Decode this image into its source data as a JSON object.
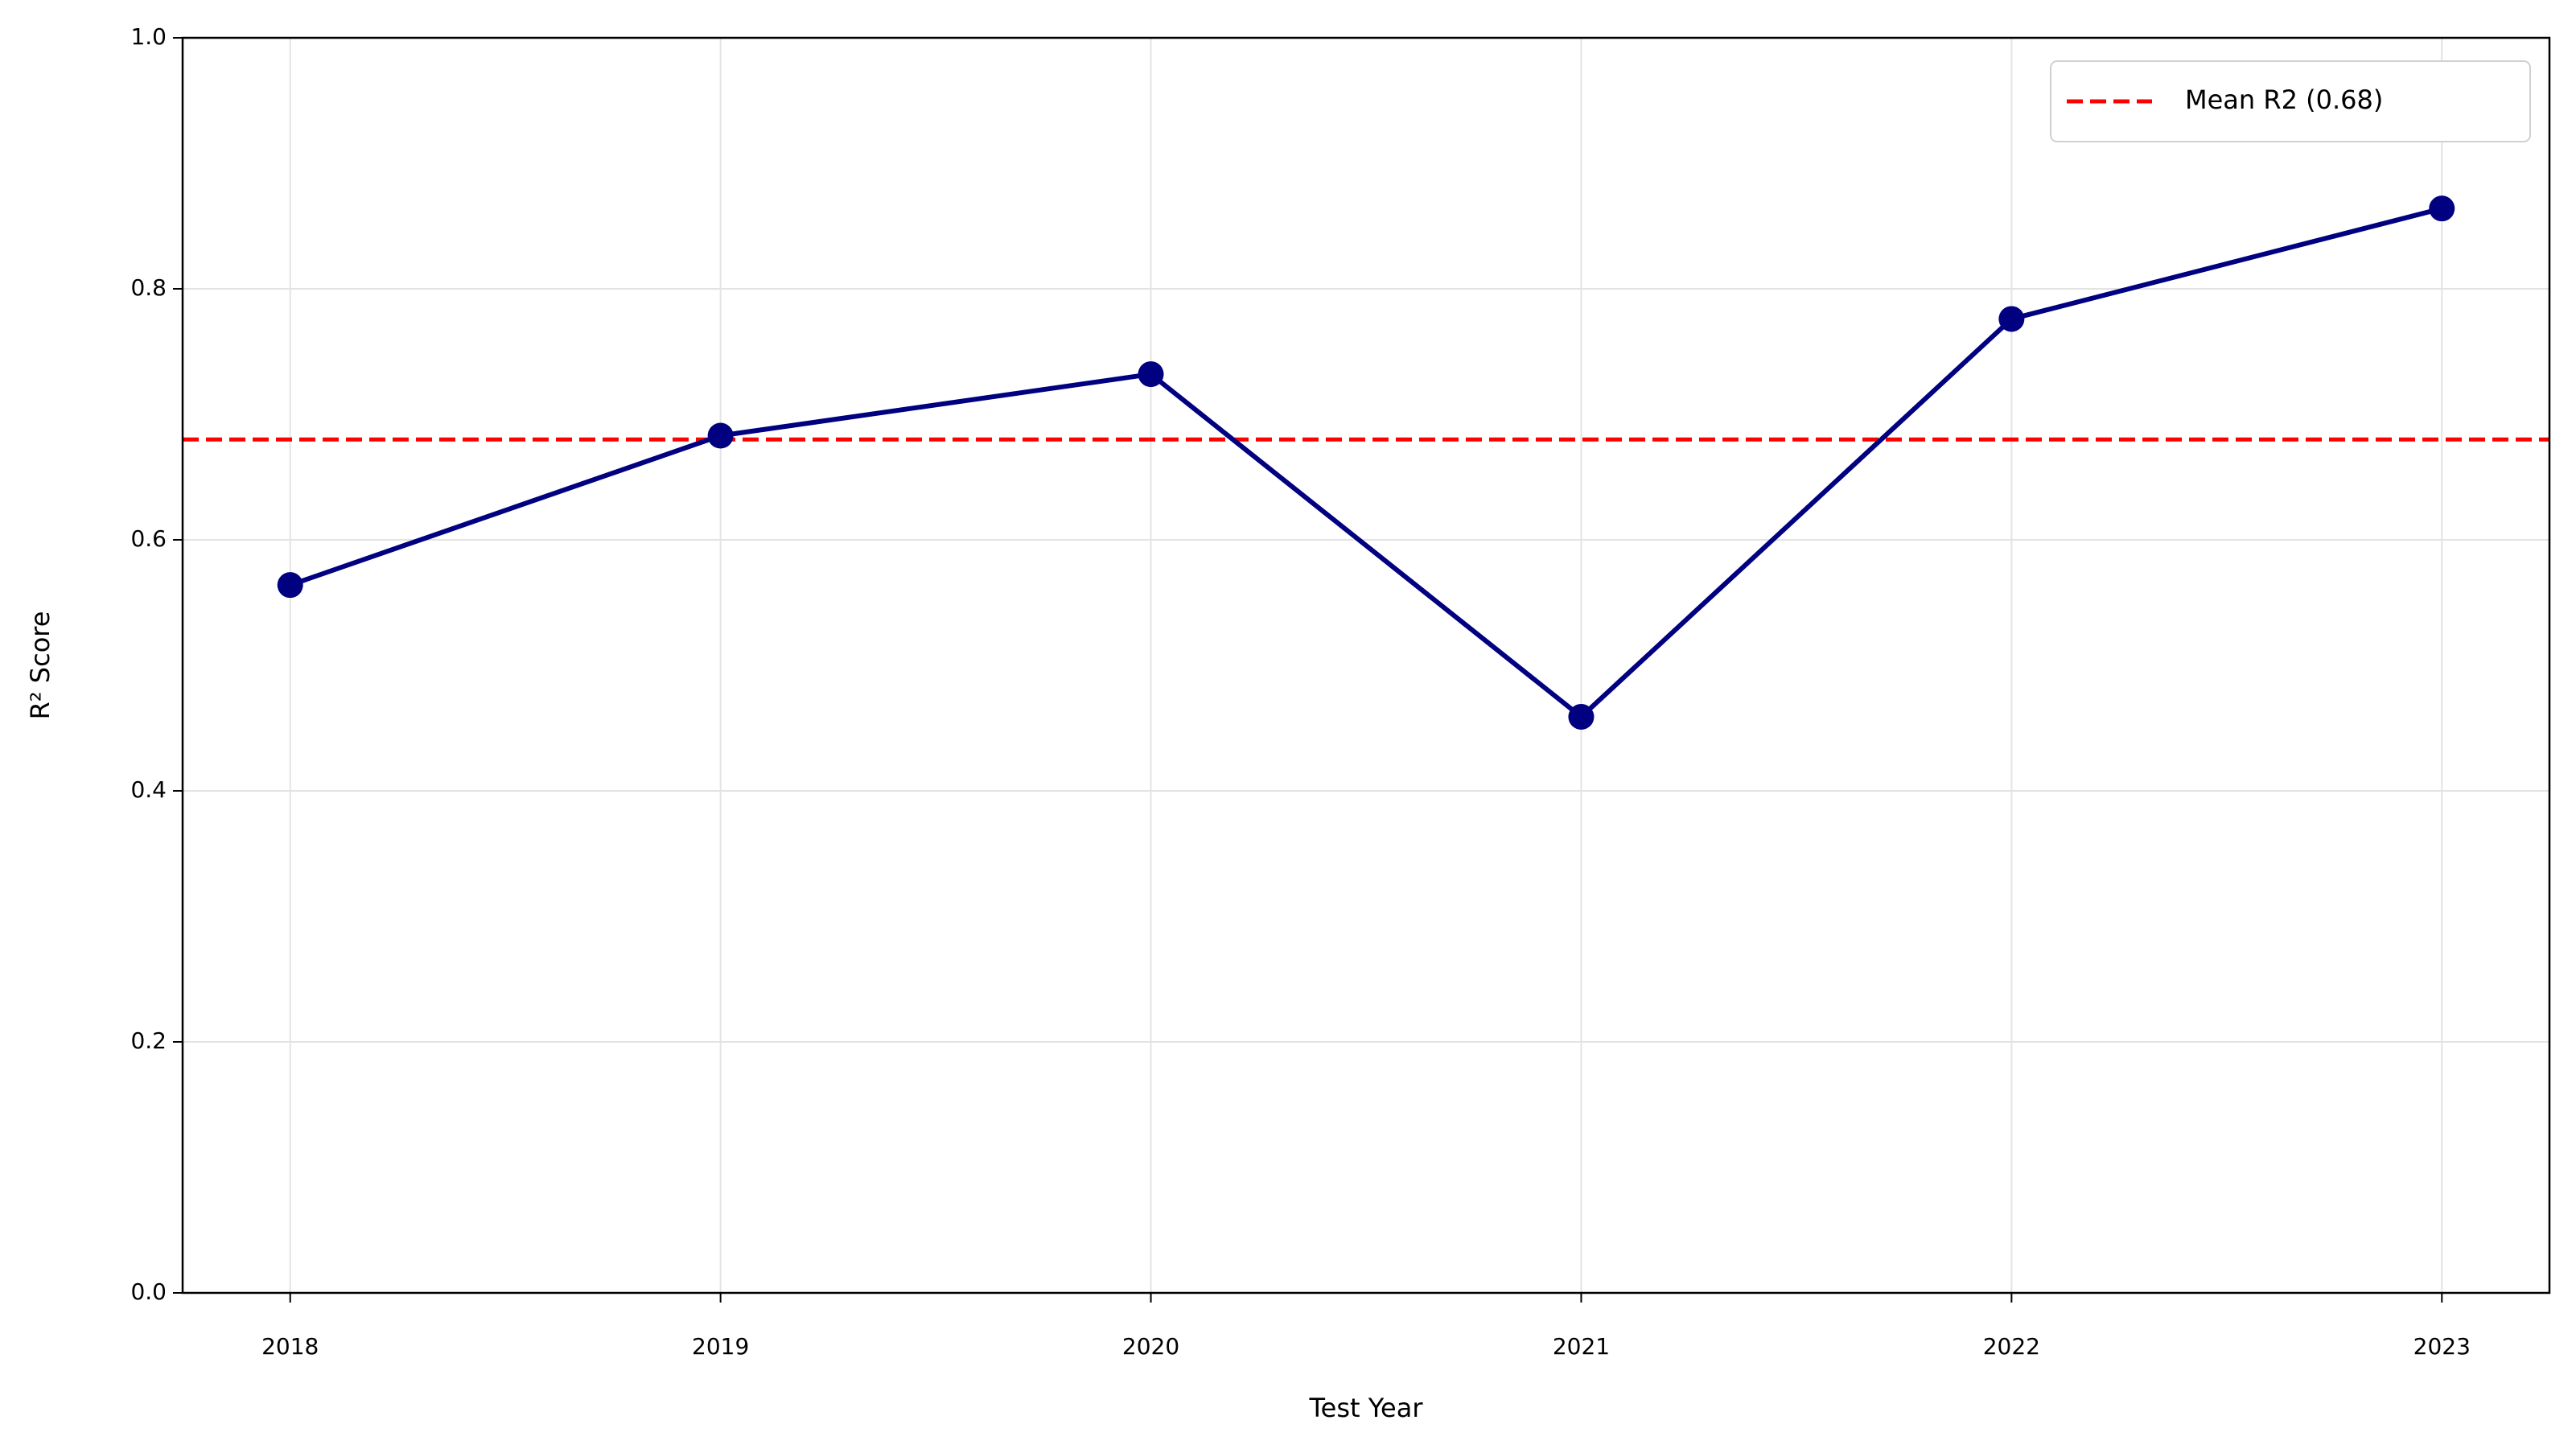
{
  "chart_data": {
    "type": "line",
    "x_label": "Test Year",
    "y_label": "R² Score",
    "x": [
      2018,
      2019,
      2020,
      2021,
      2022,
      2023
    ],
    "xlim": [
      2017.75,
      2023.25
    ],
    "xticks": [
      2018,
      2019,
      2020,
      2021,
      2022,
      2023
    ],
    "ylim": [
      0,
      1
    ],
    "yticks": [
      {
        "value": 0,
        "label": "0.0"
      },
      0.2,
      0.4,
      0.6,
      0.8,
      {
        "value": 1,
        "label": "1.0"
      }
    ],
    "grid": true,
    "series": [
      {
        "color": "#000080",
        "values": [
          0.564,
          0.683,
          0.732,
          0.459,
          0.776,
          0.864
        ]
      }
    ],
    "reference_lines": [
      {
        "name": "Mean R2 (0.68)",
        "value": 0.68,
        "color": "#ff0000",
        "style": "dashed"
      }
    ],
    "legend_position": "upper right"
  }
}
